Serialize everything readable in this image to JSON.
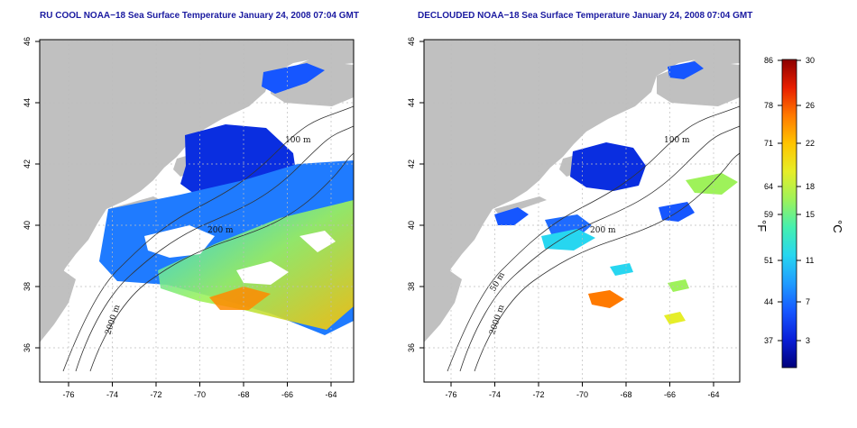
{
  "panels": [
    {
      "id": "left",
      "title": "RU COOL NOAA−18 Sea Surface Temperature January 24, 2008 07:04 GMT",
      "x_ticks": [
        "-76",
        "-74",
        "-72",
        "-70",
        "-68",
        "-66",
        "-64"
      ],
      "y_ticks": [
        "46",
        "44",
        "42",
        "40",
        "38",
        "36"
      ],
      "contour_labels": [
        "100 m",
        "200 m",
        "2000 m"
      ]
    },
    {
      "id": "right",
      "title": "DECLOUDED NOAA−18 Sea Surface Temperature January 24, 2008 07:04 GMT",
      "x_ticks": [
        "-76",
        "-74",
        "-72",
        "-70",
        "-68",
        "-66",
        "-64"
      ],
      "y_ticks": [
        "46",
        "44",
        "42",
        "40",
        "38",
        "36"
      ],
      "contour_labels": [
        "100 m",
        "200 m",
        "50 m",
        "2000 m"
      ]
    }
  ],
  "colorbar": {
    "fahrenheit_ticks": [
      "86",
      "78",
      "71",
      "64",
      "59",
      "51",
      "44",
      "37"
    ],
    "celsius_ticks": [
      "30",
      "26",
      "22",
      "18",
      "15",
      "11",
      "7",
      "3"
    ],
    "fahrenheit_unit": "°F",
    "celsius_unit": "°C",
    "colors": [
      "#00007a",
      "#0a1fd8",
      "#1656ff",
      "#1f9bff",
      "#27d6f0",
      "#45f0b0",
      "#9ef25a",
      "#e6ee28",
      "#ffc400",
      "#ff7a00",
      "#e81e00",
      "#8c0000"
    ]
  },
  "map_colors": {
    "land": "#c0c0c0",
    "ocean": "#ffffff",
    "contour": "#333333",
    "grid": "#bdbdbd"
  }
}
